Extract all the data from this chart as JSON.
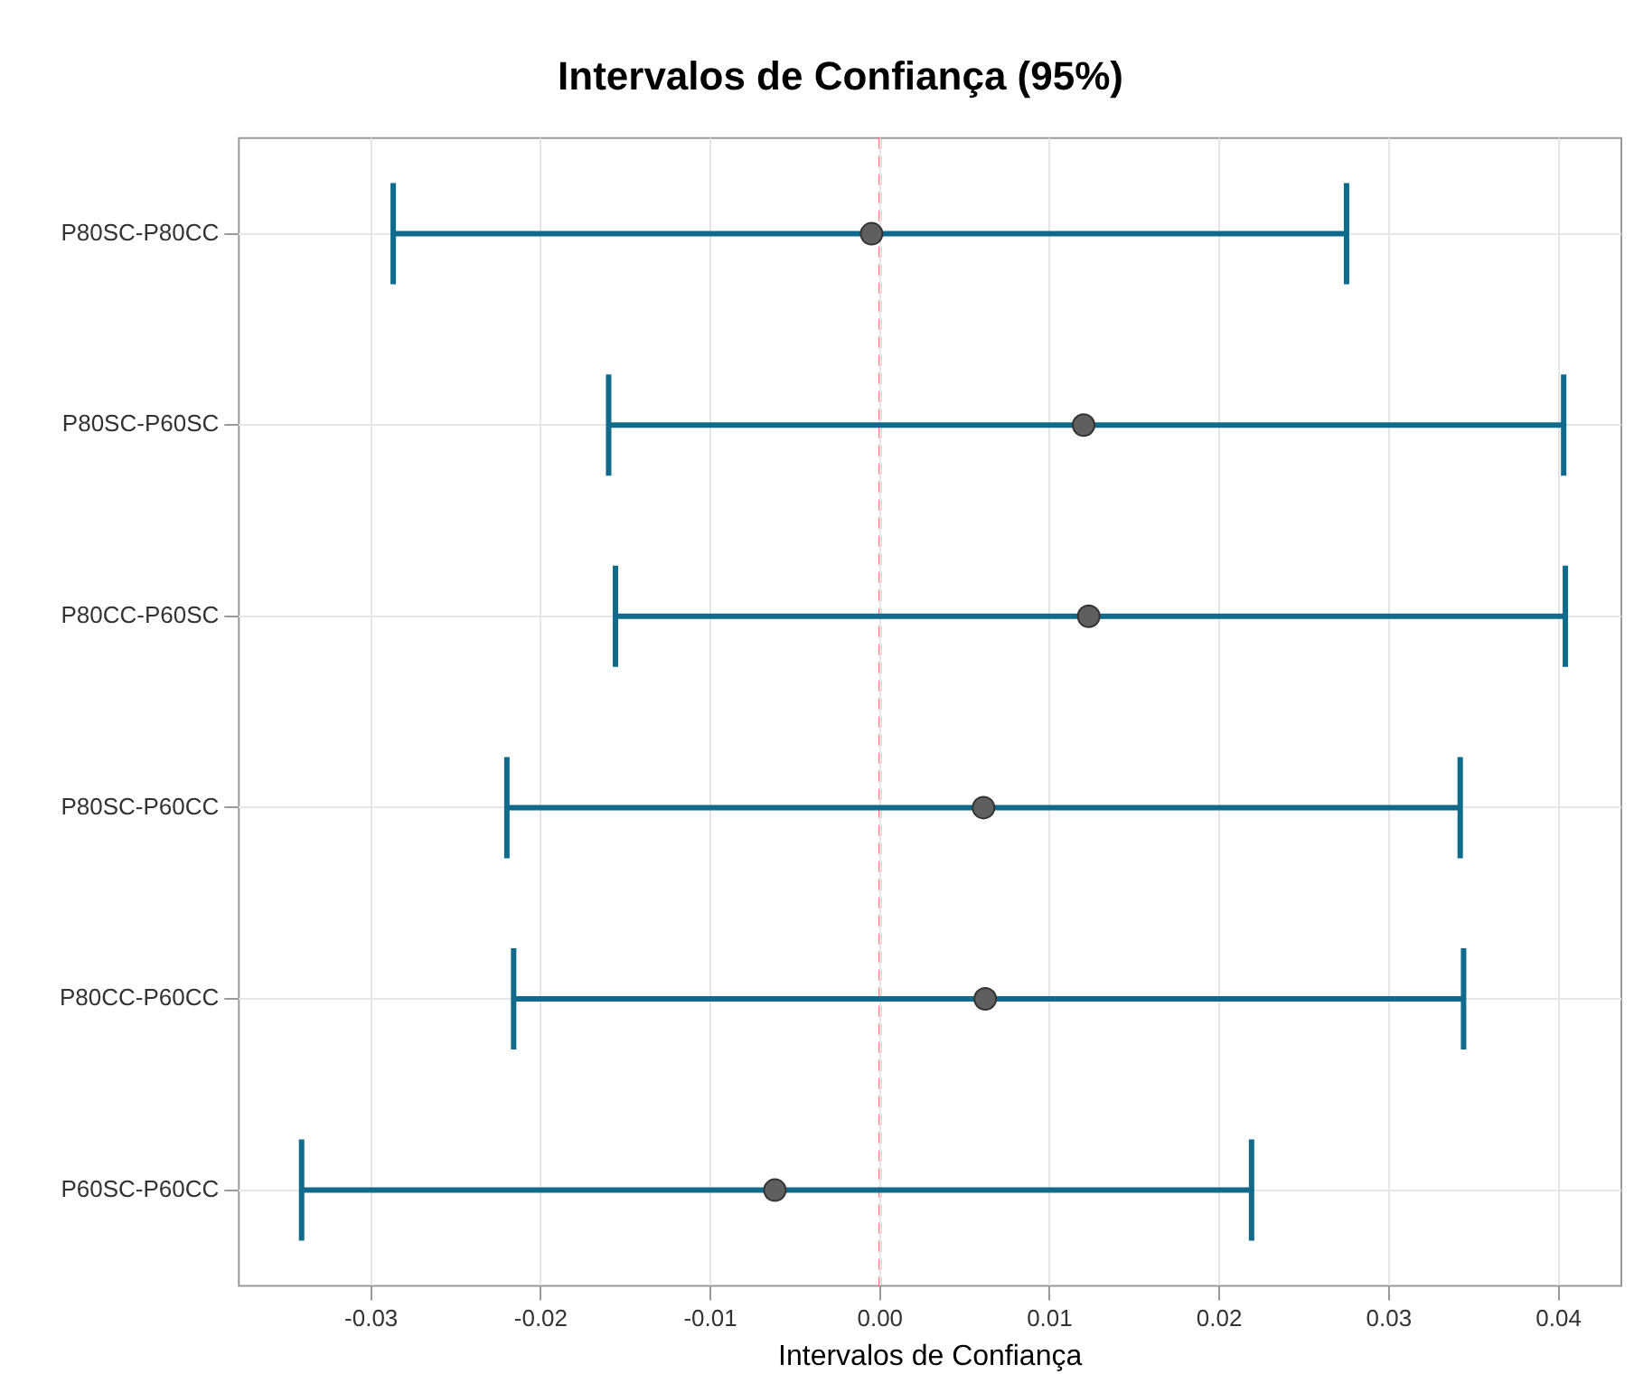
{
  "chart_data": {
    "type": "scatter",
    "orientation": "horizontal",
    "title": "Intervalos de Confiança (95%)",
    "xlabel": "Intervalos de Confiança",
    "categories": [
      "P80SC-P80CC",
      "P80SC-P60SC",
      "P80CC-P60SC",
      "P80SC-P60CC",
      "P80CC-P60CC",
      "P60SC-P60CC"
    ],
    "series": [
      {
        "color": "#5f5f5f",
        "values": [
          -0.0005,
          0.012,
          0.0123,
          0.0061,
          0.0062,
          -0.0062
        ],
        "errors": [
          [
            -0.0287,
            0.0275
          ],
          [
            -0.016,
            0.0403
          ],
          [
            -0.0156,
            0.0404
          ],
          [
            -0.022,
            0.0342
          ],
          [
            -0.0216,
            0.0344
          ],
          [
            -0.0341,
            0.0219
          ]
        ]
      }
    ],
    "xlim": [
      -0.0378,
      0.0437
    ],
    "xticks": [
      -0.03,
      -0.02,
      -0.01,
      {
        "value": 0,
        "label": "0.00"
      },
      0.01,
      0.02,
      0.03,
      0.04
    ],
    "ref_lines": [
      {
        "axis": "x",
        "value": 0,
        "color": "#ff4d4d",
        "line_style": "dashed"
      }
    ],
    "grid": true,
    "marker": "circle",
    "legend": false
  }
}
